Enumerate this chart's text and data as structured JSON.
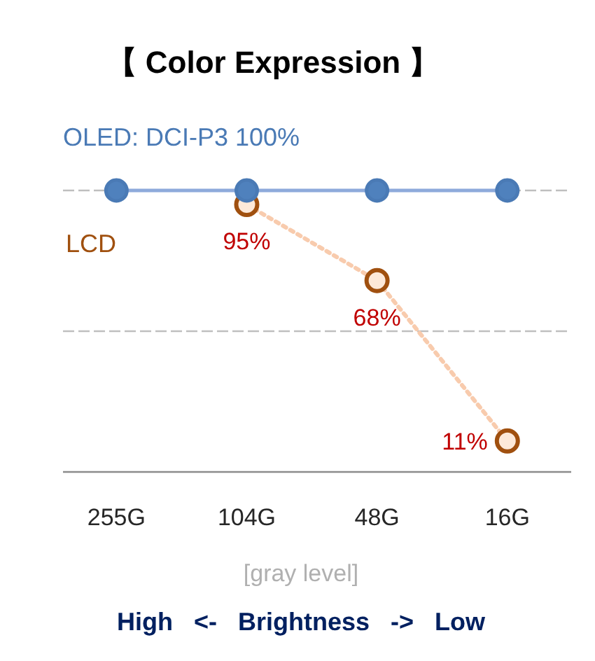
{
  "chart_data": {
    "type": "line",
    "title": "【 Color Expression 】",
    "categories": [
      "255G",
      "104G",
      "48G",
      "16G"
    ],
    "series": [
      {
        "name": "OLED: DCI-P3 100%",
        "color": "#4a7ab5",
        "values": [
          100,
          100,
          100,
          100
        ],
        "line_style": "solid"
      },
      {
        "name": "LCD",
        "color": "#a0500f",
        "values": [
          null,
          95,
          68,
          11
        ],
        "line_style": "dotted",
        "value_labels": [
          null,
          "95%",
          "68%",
          "11%"
        ]
      }
    ],
    "xlabel": "[gray level]",
    "annotations": [
      "High   <-   Brightness   ->   Low"
    ],
    "ylim": [
      0,
      100
    ],
    "ref_lines": [
      {
        "axis": "y",
        "value": 100,
        "color": "#bfbfbf",
        "line_style": "dashed"
      },
      {
        "axis": "y",
        "value": 50,
        "color": "#bfbfbf",
        "line_style": "dashed"
      }
    ],
    "marker": "circle"
  }
}
